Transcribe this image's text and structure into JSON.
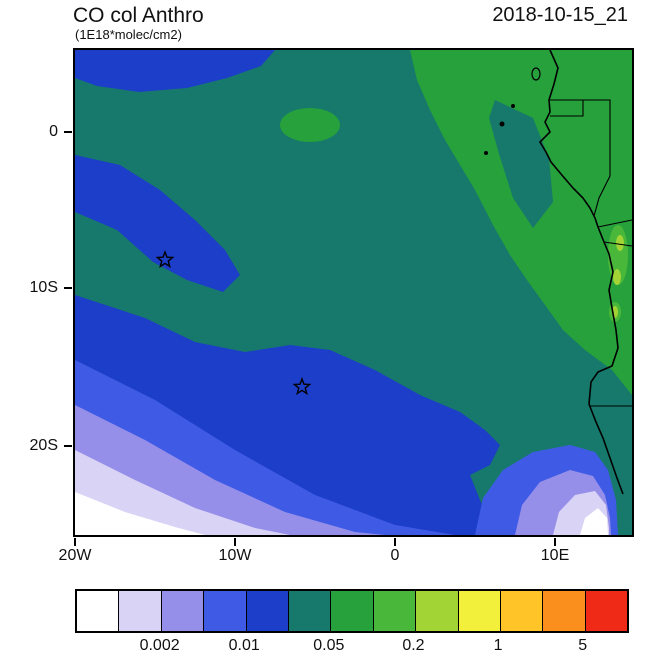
{
  "header": {
    "title": "CO col Anthro",
    "subtitle": "(1E18*molec/cm2)",
    "datetime": "2018-10-15_21"
  },
  "chart_data": {
    "type": "heatmap",
    "title": "CO col Anthro",
    "units": "1E18*molec/cm2",
    "timestamp": "2018-10-15_21",
    "x_axis": {
      "ticks": [
        "20W",
        "10W",
        "0",
        "10E"
      ],
      "lon_range_deg": [
        -20,
        14.8
      ]
    },
    "y_axis": {
      "ticks": [
        "0",
        "10S",
        "20S"
      ],
      "lat_range_deg": [
        5.2,
        -25.3
      ]
    },
    "contour_levels": [
      0.001,
      0.002,
      0.005,
      0.01,
      0.02,
      0.05,
      0.1,
      0.2,
      0.5,
      1,
      2,
      5
    ],
    "colors": [
      "#ffffff",
      "#d9d3f6",
      "#968fea",
      "#3f5be6",
      "#1c3ec8",
      "#17796b",
      "#27a13c",
      "#49b83a",
      "#a2d435",
      "#f2f03a",
      "#ffc428",
      "#fb8f1d",
      "#ef2a17"
    ],
    "colorbar_labels": [
      "0.002",
      "0.01",
      "0.05",
      "0.2",
      "1",
      "5"
    ],
    "label_boundary_indices": [
      2,
      4,
      6,
      8,
      10,
      12
    ],
    "markers": [
      {
        "type": "star",
        "lon_deg": -14.4,
        "lat_deg": -8.0
      },
      {
        "type": "star",
        "lon_deg": -6.0,
        "lat_deg": -16.0
      }
    ],
    "regions": [
      {
        "range": "0.02-0.05",
        "where": "dominant teal ocean background"
      },
      {
        "range": "0.05-0.1",
        "where": "northeast quadrant and most of African land"
      },
      {
        "range": "0.01-0.02",
        "where": "large southwest ocean area, top-left band, diagonal tongue"
      },
      {
        "range": "0.005-0.01",
        "where": "band southwest of main blue area and near southeast coast"
      },
      {
        "range": "0.002-0.005",
        "where": "band toward bottom-left corner"
      },
      {
        "range": "0.001-0.002",
        "where": "narrow band at bottom-left"
      },
      {
        "range": "<0.001",
        "where": "bottom-left corner and sliver near bottom-right coast"
      },
      {
        "range": "0.1-0.5",
        "where": "small bright patches along Angola coast"
      }
    ]
  }
}
